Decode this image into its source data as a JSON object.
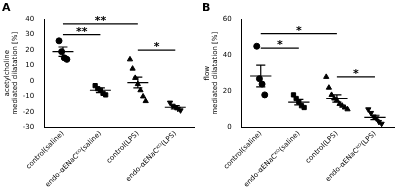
{
  "chart_data": [
    {
      "type": "scatter",
      "title": "A",
      "y_label": [
        "acetylcholine",
        "mediated dilatation [%]"
      ],
      "categories": [
        "control(saline)",
        "endo-αENaCᴷᴼ(saline)",
        "control(LPS)",
        "endo-αENaCᴷᴼ(LPS)"
      ],
      "markers": [
        "circle",
        "square",
        "triangle",
        "triangle-down"
      ],
      "color": "#000000",
      "points": [
        [
          26,
          19,
          15,
          14
        ],
        [
          -3,
          -5,
          -6,
          -8,
          -9
        ],
        [
          14,
          8,
          2,
          -2,
          -6,
          -10,
          -13
        ],
        [
          -14,
          -16,
          -17,
          -18,
          -19
        ]
      ],
      "means": [
        19,
        -6,
        -1,
        -17
      ],
      "errors": [
        3,
        1.5,
        3.5,
        1
      ],
      "ylim": [
        -30,
        40
      ],
      "yticks": [
        -30,
        -20,
        -10,
        0,
        10,
        20,
        30,
        40
      ],
      "grid": false,
      "annotations": [
        {
          "text": "**",
          "from": 0,
          "to": 1,
          "y": 30
        },
        {
          "text": "**",
          "from": 0,
          "to": 2,
          "y": 37
        },
        {
          "text": "*",
          "from": 2,
          "to": 3,
          "y": 20
        }
      ]
    },
    {
      "type": "scatter",
      "title": "B",
      "y_label": [
        "flow",
        "mediated dilatation [%]"
      ],
      "categories": [
        "control(saline)",
        "endo-αENaCᴷᴼ(saline)",
        "control(LPS)",
        "endo-αENaCᴷᴼ(LPS)"
      ],
      "markers": [
        "circle",
        "square",
        "triangle",
        "triangle-down"
      ],
      "color": "#000000",
      "points": [
        [
          45,
          27,
          24,
          18
        ],
        [
          18,
          16,
          14,
          12,
          11
        ],
        [
          28,
          22,
          18,
          16,
          15,
          13,
          12,
          11,
          10
        ],
        [
          10,
          8,
          6,
          5,
          3,
          2
        ]
      ],
      "means": [
        28.5,
        14,
        16,
        5.5
      ],
      "errors": [
        6,
        1.5,
        2,
        1.2
      ],
      "ylim": [
        0,
        60
      ],
      "yticks": [
        0,
        20,
        40,
        60
      ],
      "grid": false,
      "annotations": [
        {
          "text": "*",
          "from": 0,
          "to": 1,
          "y": 44
        },
        {
          "text": "*",
          "from": 0,
          "to": 2,
          "y": 52
        },
        {
          "text": "*",
          "from": 2,
          "to": 3,
          "y": 28
        }
      ]
    }
  ]
}
